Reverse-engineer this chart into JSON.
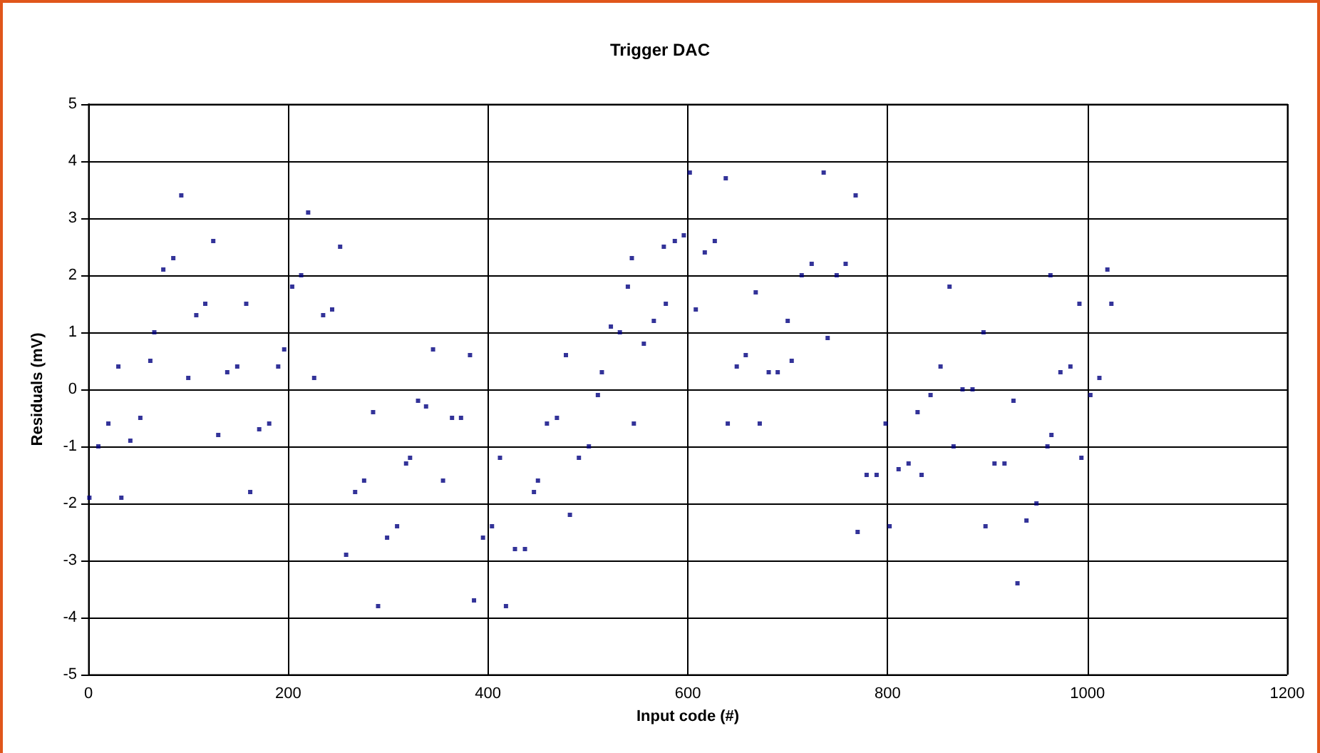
{
  "chart_data": {
    "type": "scatter",
    "title": "Trigger DAC",
    "xlabel": "Input code (#)",
    "ylabel": "Residuals (mV)",
    "xlim": [
      0,
      1200
    ],
    "xticks": [
      0,
      200,
      400,
      600,
      800,
      1000,
      1200
    ],
    "ylim": [
      -5,
      5
    ],
    "yticks": [
      -5,
      -4,
      -3,
      -2,
      -1,
      0,
      1,
      2,
      3,
      4,
      5
    ],
    "grid": true,
    "marker": "square",
    "series": [
      {
        "color": "#000080",
        "x": [
          1,
          10,
          20,
          30,
          33,
          42,
          52,
          62,
          66,
          75,
          85,
          93,
          100,
          108,
          117,
          125,
          130,
          139,
          149,
          158,
          162,
          171,
          181,
          190,
          196,
          204,
          213,
          220,
          226,
          235,
          244,
          252,
          258,
          267,
          276,
          285,
          290,
          299,
          309,
          318,
          322,
          330,
          338,
          345,
          355,
          364,
          373,
          382,
          386,
          395,
          404,
          412,
          418,
          427,
          437,
          446,
          450,
          459,
          469,
          478,
          482,
          491,
          501,
          510,
          514,
          523,
          532,
          540,
          544,
          546,
          556,
          566,
          576,
          578,
          587,
          596,
          602,
          608,
          617,
          627,
          638,
          640,
          649,
          658,
          668,
          672,
          681,
          690,
          700,
          704,
          714,
          724,
          736,
          740,
          749,
          758,
          768,
          770,
          779,
          789,
          798,
          802,
          811,
          821,
          830,
          834,
          843,
          853,
          862,
          866,
          875,
          885,
          896,
          898,
          907,
          917,
          926,
          930,
          939,
          949,
          960,
          963,
          964,
          973,
          983,
          992,
          994,
          1003,
          1012,
          1020,
          1024
        ],
        "values": [
          -1.9,
          -1.0,
          -0.6,
          0.4,
          -1.9,
          -0.9,
          -0.5,
          0.5,
          1.0,
          2.1,
          2.3,
          3.4,
          0.2,
          1.3,
          1.5,
          2.6,
          -0.8,
          0.3,
          0.4,
          1.5,
          -1.8,
          -0.7,
          -0.6,
          0.4,
          0.7,
          1.8,
          2.0,
          3.1,
          0.2,
          1.3,
          1.4,
          2.5,
          -2.9,
          -1.8,
          -1.6,
          -0.4,
          -3.8,
          -2.6,
          -2.4,
          -1.3,
          -1.2,
          -0.2,
          -0.3,
          0.7,
          -1.6,
          -0.5,
          -0.5,
          0.6,
          -3.7,
          -2.6,
          -2.4,
          -1.2,
          -3.8,
          -2.8,
          -2.8,
          -1.8,
          -1.6,
          -0.6,
          -0.5,
          0.6,
          -2.2,
          -1.2,
          -1.0,
          -0.1,
          0.3,
          1.1,
          1.0,
          1.8,
          2.3,
          -0.6,
          0.8,
          1.2,
          2.5,
          1.5,
          2.6,
          2.7,
          3.8,
          1.4,
          2.4,
          2.6,
          3.7,
          -0.6,
          0.4,
          0.6,
          1.7,
          -0.6,
          0.3,
          0.3,
          1.2,
          0.5,
          2.0,
          2.2,
          3.8,
          0.9,
          2.0,
          2.2,
          3.4,
          -2.5,
          -1.5,
          -1.5,
          -0.6,
          -2.4,
          -1.4,
          -1.3,
          -0.4,
          -1.5,
          -0.1,
          0.4,
          1.8,
          -1.0,
          0.0,
          0.0,
          1.0,
          -2.4,
          -1.3,
          -1.3,
          -0.2,
          -3.4,
          -2.3,
          -2.0,
          -1.0,
          2.0,
          -0.8,
          0.3,
          0.4,
          1.5,
          -1.2,
          -0.1,
          0.2,
          2.1,
          1.5
        ]
      }
    ]
  }
}
